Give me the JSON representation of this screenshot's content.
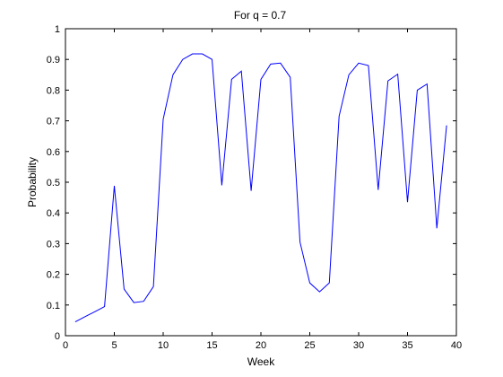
{
  "chart_data": {
    "type": "line",
    "title": "For q = 0.7",
    "xlabel": "Week",
    "ylabel": "Probability",
    "xlim": [
      0,
      40
    ],
    "ylim": [
      0,
      1
    ],
    "xticks": [
      "0",
      "5",
      "10",
      "15",
      "20",
      "25",
      "30",
      "35",
      "40"
    ],
    "yticks": [
      "0",
      "0.1",
      "0.2",
      "0.3",
      "0.4",
      "0.5",
      "0.6",
      "0.7",
      "0.8",
      "0.9",
      "1"
    ],
    "grid": false,
    "legend": "none",
    "series": [
      {
        "color": "#0000ff",
        "x": [
          1,
          2,
          3,
          4,
          5,
          6,
          7,
          8,
          9,
          10,
          11,
          12,
          13,
          14,
          15,
          16,
          17,
          18,
          19,
          20,
          21,
          22,
          23,
          24,
          25,
          26,
          27,
          28,
          29,
          30,
          31,
          32,
          33,
          34,
          35,
          36,
          37,
          38,
          39
        ],
        "y": [
          0.045,
          0.062,
          0.078,
          0.095,
          0.488,
          0.152,
          0.108,
          0.112,
          0.16,
          0.705,
          0.85,
          0.9,
          0.918,
          0.918,
          0.9,
          0.49,
          0.835,
          0.862,
          0.472,
          0.835,
          0.885,
          0.888,
          0.842,
          0.305,
          0.172,
          0.143,
          0.172,
          0.715,
          0.85,
          0.888,
          0.88,
          0.475,
          0.83,
          0.852,
          0.435,
          0.8,
          0.82,
          0.35,
          0.685
        ]
      }
    ]
  }
}
